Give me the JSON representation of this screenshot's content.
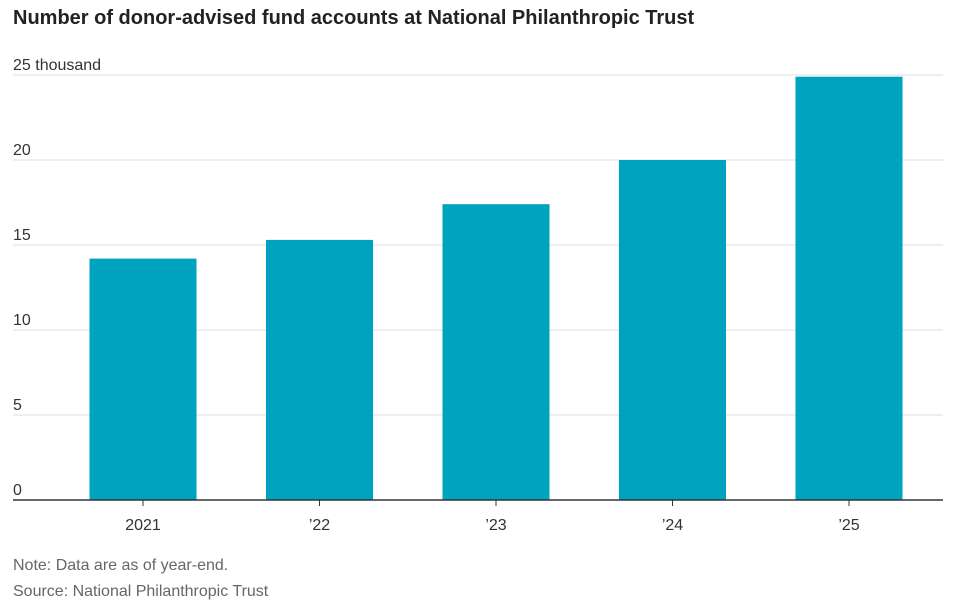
{
  "chart_data": {
    "type": "bar",
    "title": "Number of donor-advised fund accounts at National Philanthropic Trust",
    "categories": [
      "2021",
      "’22",
      "’23",
      "’24",
      "’25"
    ],
    "values": [
      14.2,
      15.3,
      17.4,
      20.0,
      24.9
    ],
    "y_unit": "thousand",
    "ylim": [
      0,
      25
    ],
    "yticks": [
      0,
      5,
      10,
      15,
      20,
      25
    ],
    "ytick_labels": [
      "0",
      "5",
      "10",
      "15",
      "20",
      "25 thousand"
    ],
    "grid": "horizontal",
    "bar_color": "#00a3bf"
  },
  "note": "Note: Data are as of year-end.",
  "source": "Source: National Philanthropic Trust"
}
